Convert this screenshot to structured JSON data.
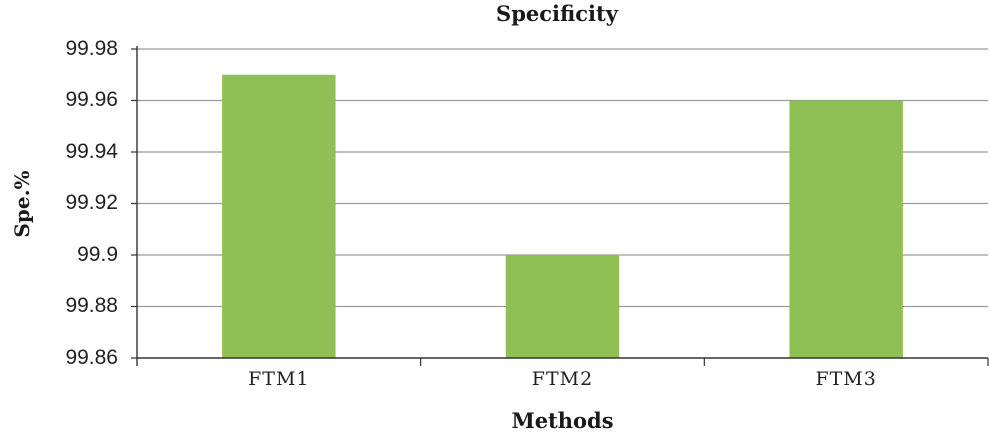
{
  "chart_data": {
    "type": "bar",
    "title": "Specificity",
    "xlabel": "Methods",
    "ylabel": "Spe.%",
    "categories": [
      "FTM1",
      "FTM2",
      "FTM3"
    ],
    "values": [
      99.97,
      99.9,
      99.96
    ],
    "ylim": [
      99.86,
      99.98
    ],
    "yticks": [
      "99.98",
      "99.96",
      "99.94",
      "99.92",
      "99.9",
      "99.88",
      "99.86"
    ],
    "grid": true,
    "legend": "none",
    "bar_color": "#8fc054"
  }
}
